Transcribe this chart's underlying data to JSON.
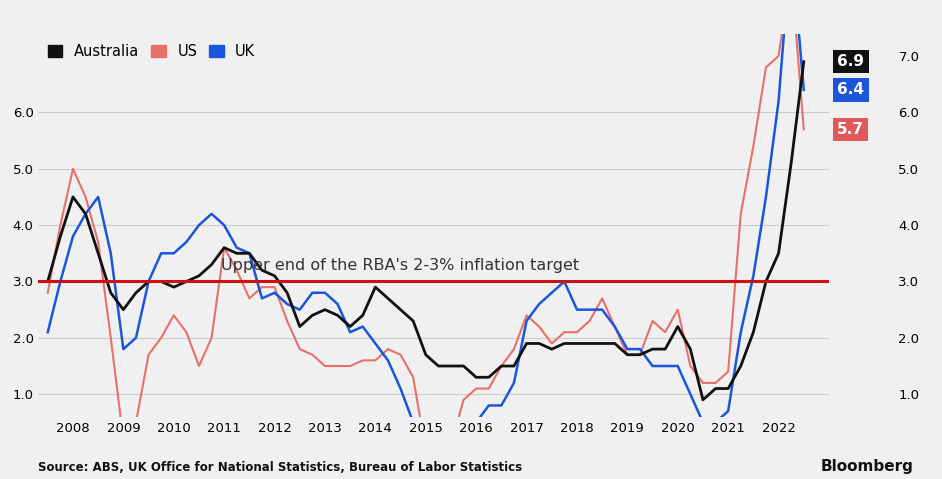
{
  "source_text": "Source: ABS, UK Office for National Statistics, Bureau of Labor Statistics",
  "bloomberg_text": "Bloomberg",
  "annotation_text": "Upper end of the RBA's 2-3% inflation target",
  "target_line_y": 3.0,
  "end_labels": [
    {
      "label": "6.9",
      "bg": "#111111",
      "text_color": "#ffffff",
      "val": 6.9
    },
    {
      "label": "6.4",
      "bg": "#1a56db",
      "text_color": "#ffffff",
      "val": 6.4
    },
    {
      "label": "5.7",
      "bg": "#e05a5a",
      "text_color": "#ffffff",
      "val": 5.7
    }
  ],
  "australia_color": "#111111",
  "us_color": "#e8706a",
  "uk_color": "#1a56db",
  "target_line_color": "#cc1111",
  "background_color": "#f0f0f0",
  "grid_color": "#cccccc",
  "ylim": [
    0.6,
    7.4
  ],
  "yticks": [
    1.0,
    2.0,
    3.0,
    4.0,
    5.0,
    6.0
  ],
  "x": [
    2007.5,
    2007.75,
    2008.0,
    2008.25,
    2008.5,
    2008.75,
    2009.0,
    2009.25,
    2009.5,
    2009.75,
    2010.0,
    2010.25,
    2010.5,
    2010.75,
    2011.0,
    2011.25,
    2011.5,
    2011.75,
    2012.0,
    2012.25,
    2012.5,
    2012.75,
    2013.0,
    2013.25,
    2013.5,
    2013.75,
    2014.0,
    2014.25,
    2014.5,
    2014.75,
    2015.0,
    2015.25,
    2015.5,
    2015.75,
    2016.0,
    2016.25,
    2016.5,
    2016.75,
    2017.0,
    2017.25,
    2017.5,
    2017.75,
    2018.0,
    2018.25,
    2018.5,
    2018.75,
    2019.0,
    2019.25,
    2019.5,
    2019.75,
    2020.0,
    2020.25,
    2020.5,
    2020.75,
    2021.0,
    2021.25,
    2021.5,
    2021.75,
    2022.0,
    2022.25,
    2022.5
  ],
  "australia": [
    3.0,
    3.8,
    4.5,
    4.2,
    3.5,
    2.8,
    2.5,
    2.8,
    3.0,
    3.0,
    2.9,
    3.0,
    3.1,
    3.3,
    3.6,
    3.5,
    3.5,
    3.2,
    3.1,
    2.8,
    2.2,
    2.4,
    2.5,
    2.4,
    2.2,
    2.4,
    2.9,
    2.7,
    2.5,
    2.3,
    1.7,
    1.5,
    1.5,
    1.5,
    1.3,
    1.3,
    1.5,
    1.5,
    1.9,
    1.9,
    1.8,
    1.9,
    1.9,
    1.9,
    1.9,
    1.9,
    1.7,
    1.7,
    1.8,
    1.8,
    2.2,
    1.8,
    0.9,
    1.1,
    1.1,
    1.5,
    2.1,
    3.0,
    3.5,
    5.1,
    6.9
  ],
  "us": [
    2.8,
    4.0,
    5.0,
    4.5,
    3.7,
    2.0,
    0.2,
    0.5,
    1.7,
    2.0,
    2.4,
    2.1,
    1.5,
    2.0,
    3.6,
    3.2,
    2.7,
    2.9,
    2.9,
    2.3,
    1.8,
    1.7,
    1.5,
    1.5,
    1.5,
    1.6,
    1.6,
    1.8,
    1.7,
    1.3,
    0.0,
    0.1,
    0.1,
    0.9,
    1.1,
    1.1,
    1.5,
    1.8,
    2.4,
    2.2,
    1.9,
    2.1,
    2.1,
    2.3,
    2.7,
    2.2,
    1.7,
    1.7,
    2.3,
    2.1,
    2.5,
    1.5,
    1.2,
    1.2,
    1.4,
    4.2,
    5.4,
    6.8,
    7.0,
    8.5,
    5.7
  ],
  "uk": [
    2.1,
    3.0,
    3.8,
    4.2,
    4.5,
    3.5,
    1.8,
    2.0,
    3.0,
    3.5,
    3.5,
    3.7,
    4.0,
    4.2,
    4.0,
    3.6,
    3.5,
    2.7,
    2.8,
    2.6,
    2.5,
    2.8,
    2.8,
    2.6,
    2.1,
    2.2,
    1.9,
    1.6,
    1.1,
    0.5,
    0.0,
    0.0,
    0.0,
    0.2,
    0.5,
    0.8,
    0.8,
    1.2,
    2.3,
    2.6,
    2.8,
    3.0,
    2.5,
    2.5,
    2.5,
    2.2,
    1.8,
    1.8,
    1.5,
    1.5,
    1.5,
    1.0,
    0.5,
    0.5,
    0.7,
    2.1,
    3.1,
    4.5,
    6.2,
    9.0,
    6.4
  ],
  "xlim": [
    2007.3,
    2023.0
  ],
  "xtick_years": [
    2008,
    2009,
    2010,
    2011,
    2012,
    2013,
    2014,
    2015,
    2016,
    2017,
    2018,
    2019,
    2020,
    2021,
    2022
  ],
  "legend_entries": [
    "Australia",
    "US",
    "UK"
  ],
  "legend_colors": [
    "#111111",
    "#e8706a",
    "#1a56db"
  ]
}
